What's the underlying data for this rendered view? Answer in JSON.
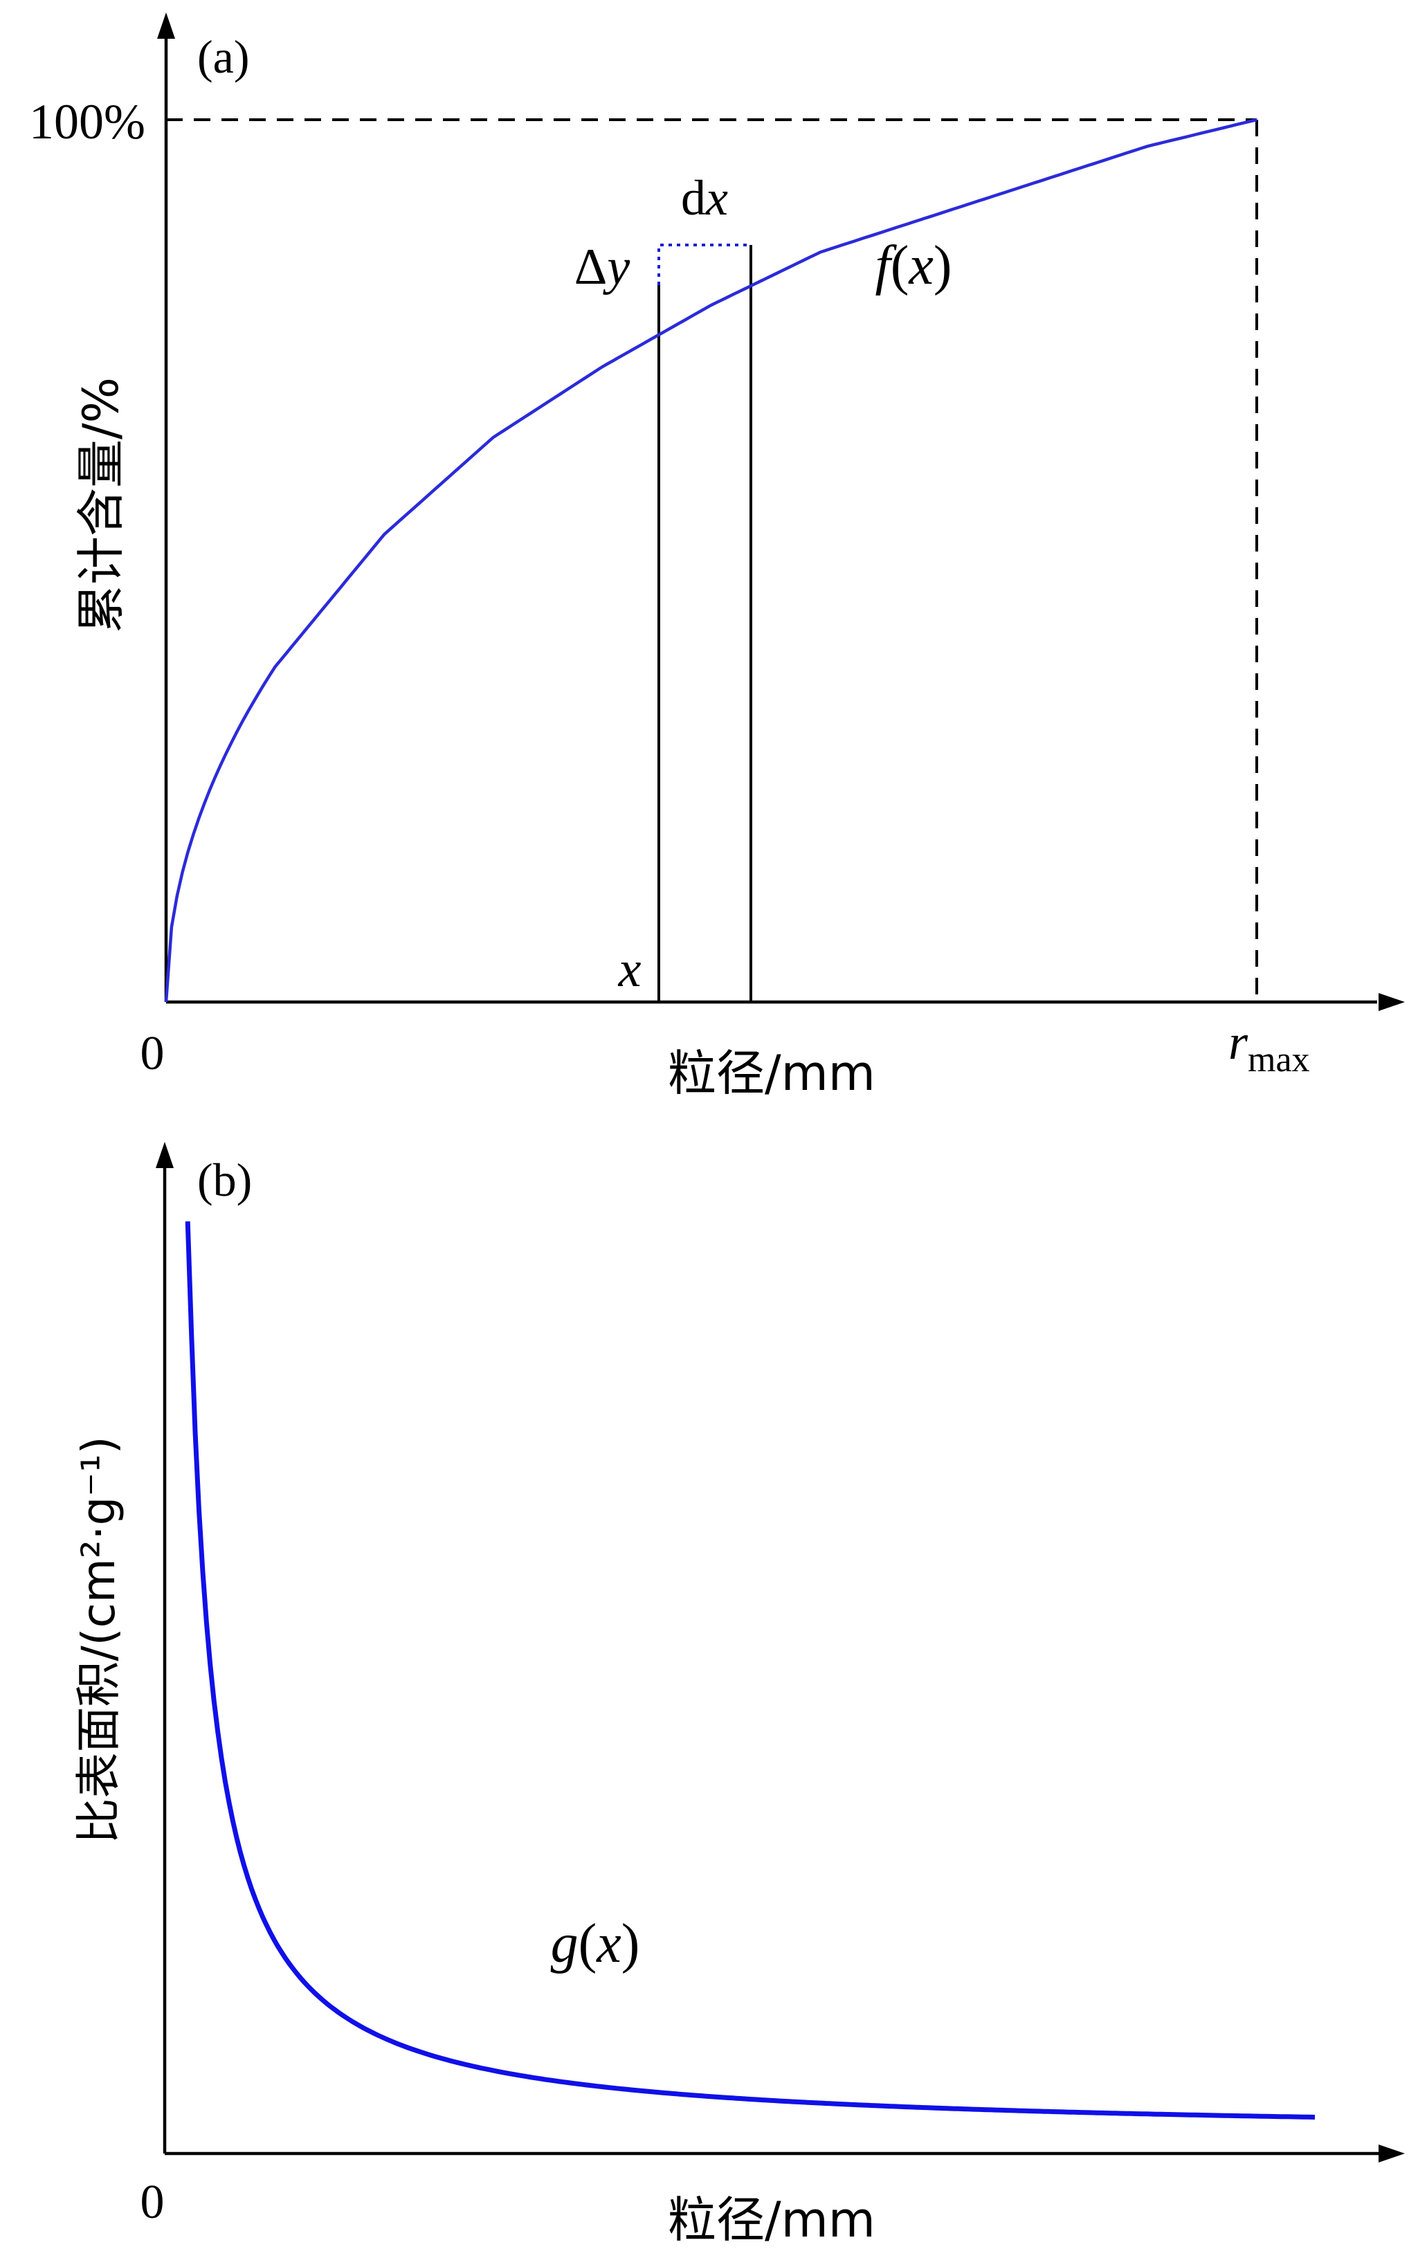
{
  "chart_data": [
    {
      "panel_label": "(a)",
      "type": "line",
      "ylabel": "累计含量/%",
      "xlabel": "粒径/mm",
      "y_tick": "100%",
      "origin_label": "0",
      "x_end_label": {
        "main": "r",
        "sub": "max"
      },
      "curve_label": {
        "name": "f",
        "arg": "x"
      },
      "annotations": {
        "x": "x",
        "dx": {
          "d": "d",
          "var": "x"
        },
        "dy": {
          "delta": "Δ",
          "var": "y"
        }
      },
      "colors": {
        "curve": "#2b2bd9",
        "axes": "#000000"
      },
      "series": [
        {
          "x": [
            0,
            0.05,
            0.1,
            0.2,
            0.3,
            0.4,
            0.5,
            0.6,
            0.7,
            0.8,
            0.9,
            1.0
          ],
          "y": [
            0,
            27,
            38,
            53,
            64,
            72,
            79,
            85,
            89,
            93,
            97,
            100
          ]
        }
      ]
    },
    {
      "panel_label": "(b)",
      "type": "line",
      "ylabel": "比表面积/(cm²·g⁻¹)",
      "xlabel": "粒径/mm",
      "origin_label": "0",
      "curve_label": {
        "name": "g",
        "arg": "x"
      },
      "colors": {
        "curve": "#1010e8",
        "axes": "#000000"
      },
      "series": [
        {
          "x": [
            0.02,
            0.05,
            0.1,
            0.2,
            0.3,
            0.4,
            0.5,
            0.6,
            0.7,
            0.8,
            0.9,
            1.0
          ],
          "y": [
            100,
            45,
            24,
            13,
            9.5,
            7.6,
            6.5,
            5.7,
            5.1,
            4.6,
            4.2,
            3.9
          ]
        }
      ]
    }
  ]
}
